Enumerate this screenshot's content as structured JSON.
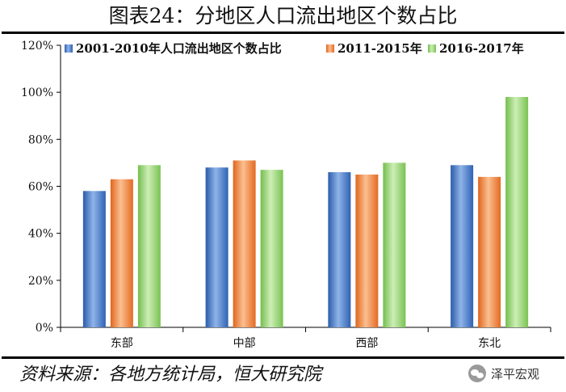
{
  "title": "图表24：分地区人口流出地区个数占比",
  "source": "资料来源：各地方统计局，恒大研究院",
  "watermark": "泽平宏观",
  "chart_data": {
    "type": "bar",
    "categories": [
      "东部",
      "中部",
      "西部",
      "东北"
    ],
    "series": [
      {
        "name": "2001-2010年人口流出地区个数占比",
        "values": [
          58,
          68,
          66,
          69
        ],
        "color": "#3e73c4"
      },
      {
        "name": "2011-2015年",
        "values": [
          63,
          71,
          65,
          64
        ],
        "color": "#ee7b34"
      },
      {
        "name": "2016-2017年",
        "values": [
          69,
          67,
          70,
          98
        ],
        "color": "#8cd06a"
      }
    ],
    "ylim": [
      0,
      120
    ],
    "yticks": [
      "0%",
      "20%",
      "40%",
      "60%",
      "80%",
      "100%",
      "120%"
    ],
    "grid": false,
    "legend": "top"
  }
}
